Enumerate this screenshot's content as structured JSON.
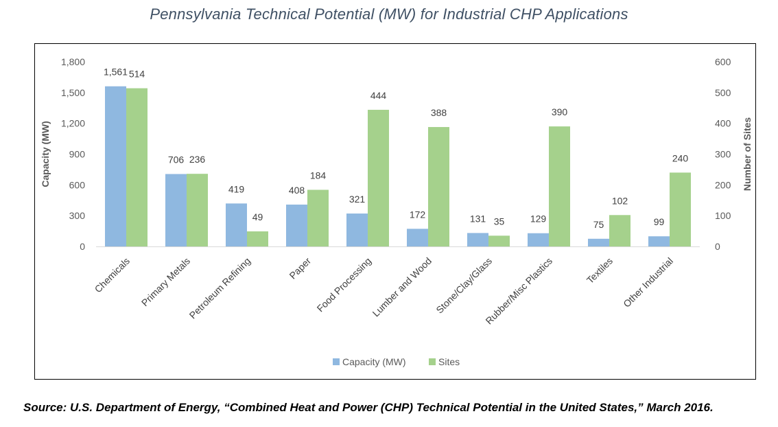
{
  "title": "Pennsylvania Technical Potential (MW) for Industrial CHP Applications",
  "source": "Source: U.S. Department of Energy, “Combined Heat and Power (CHP) Technical Potential in the United States,” March 2016.",
  "chart_data": {
    "type": "bar",
    "categories": [
      "Chemicals",
      "Primary Metals",
      "Petroleum Refining",
      "Paper",
      "Food Processing",
      "Lumber and Wood",
      "Stone/Clay/Glass",
      "Rubber/Misc Plastics",
      "Textiles",
      "Other Industrial"
    ],
    "series": [
      {
        "name": "Capacity (MW)",
        "axis": "left",
        "color": "#8fb8e0",
        "values": [
          1561,
          706,
          419,
          408,
          321,
          172,
          131,
          129,
          75,
          99
        ]
      },
      {
        "name": "Sites",
        "axis": "right",
        "color": "#a5d18c",
        "values": [
          514,
          236,
          49,
          184,
          444,
          388,
          35,
          390,
          102,
          240
        ]
      }
    ],
    "ylabel": "Capacity (MW)",
    "y2label": "Number of Sites",
    "ylim": [
      0,
      1800
    ],
    "y2lim": [
      0,
      600
    ],
    "yticks": [
      0,
      300,
      600,
      900,
      1200,
      1500,
      1800
    ],
    "y2ticks": [
      0,
      100,
      200,
      300,
      400,
      500,
      600
    ],
    "grid": false,
    "legend_position": "bottom"
  }
}
